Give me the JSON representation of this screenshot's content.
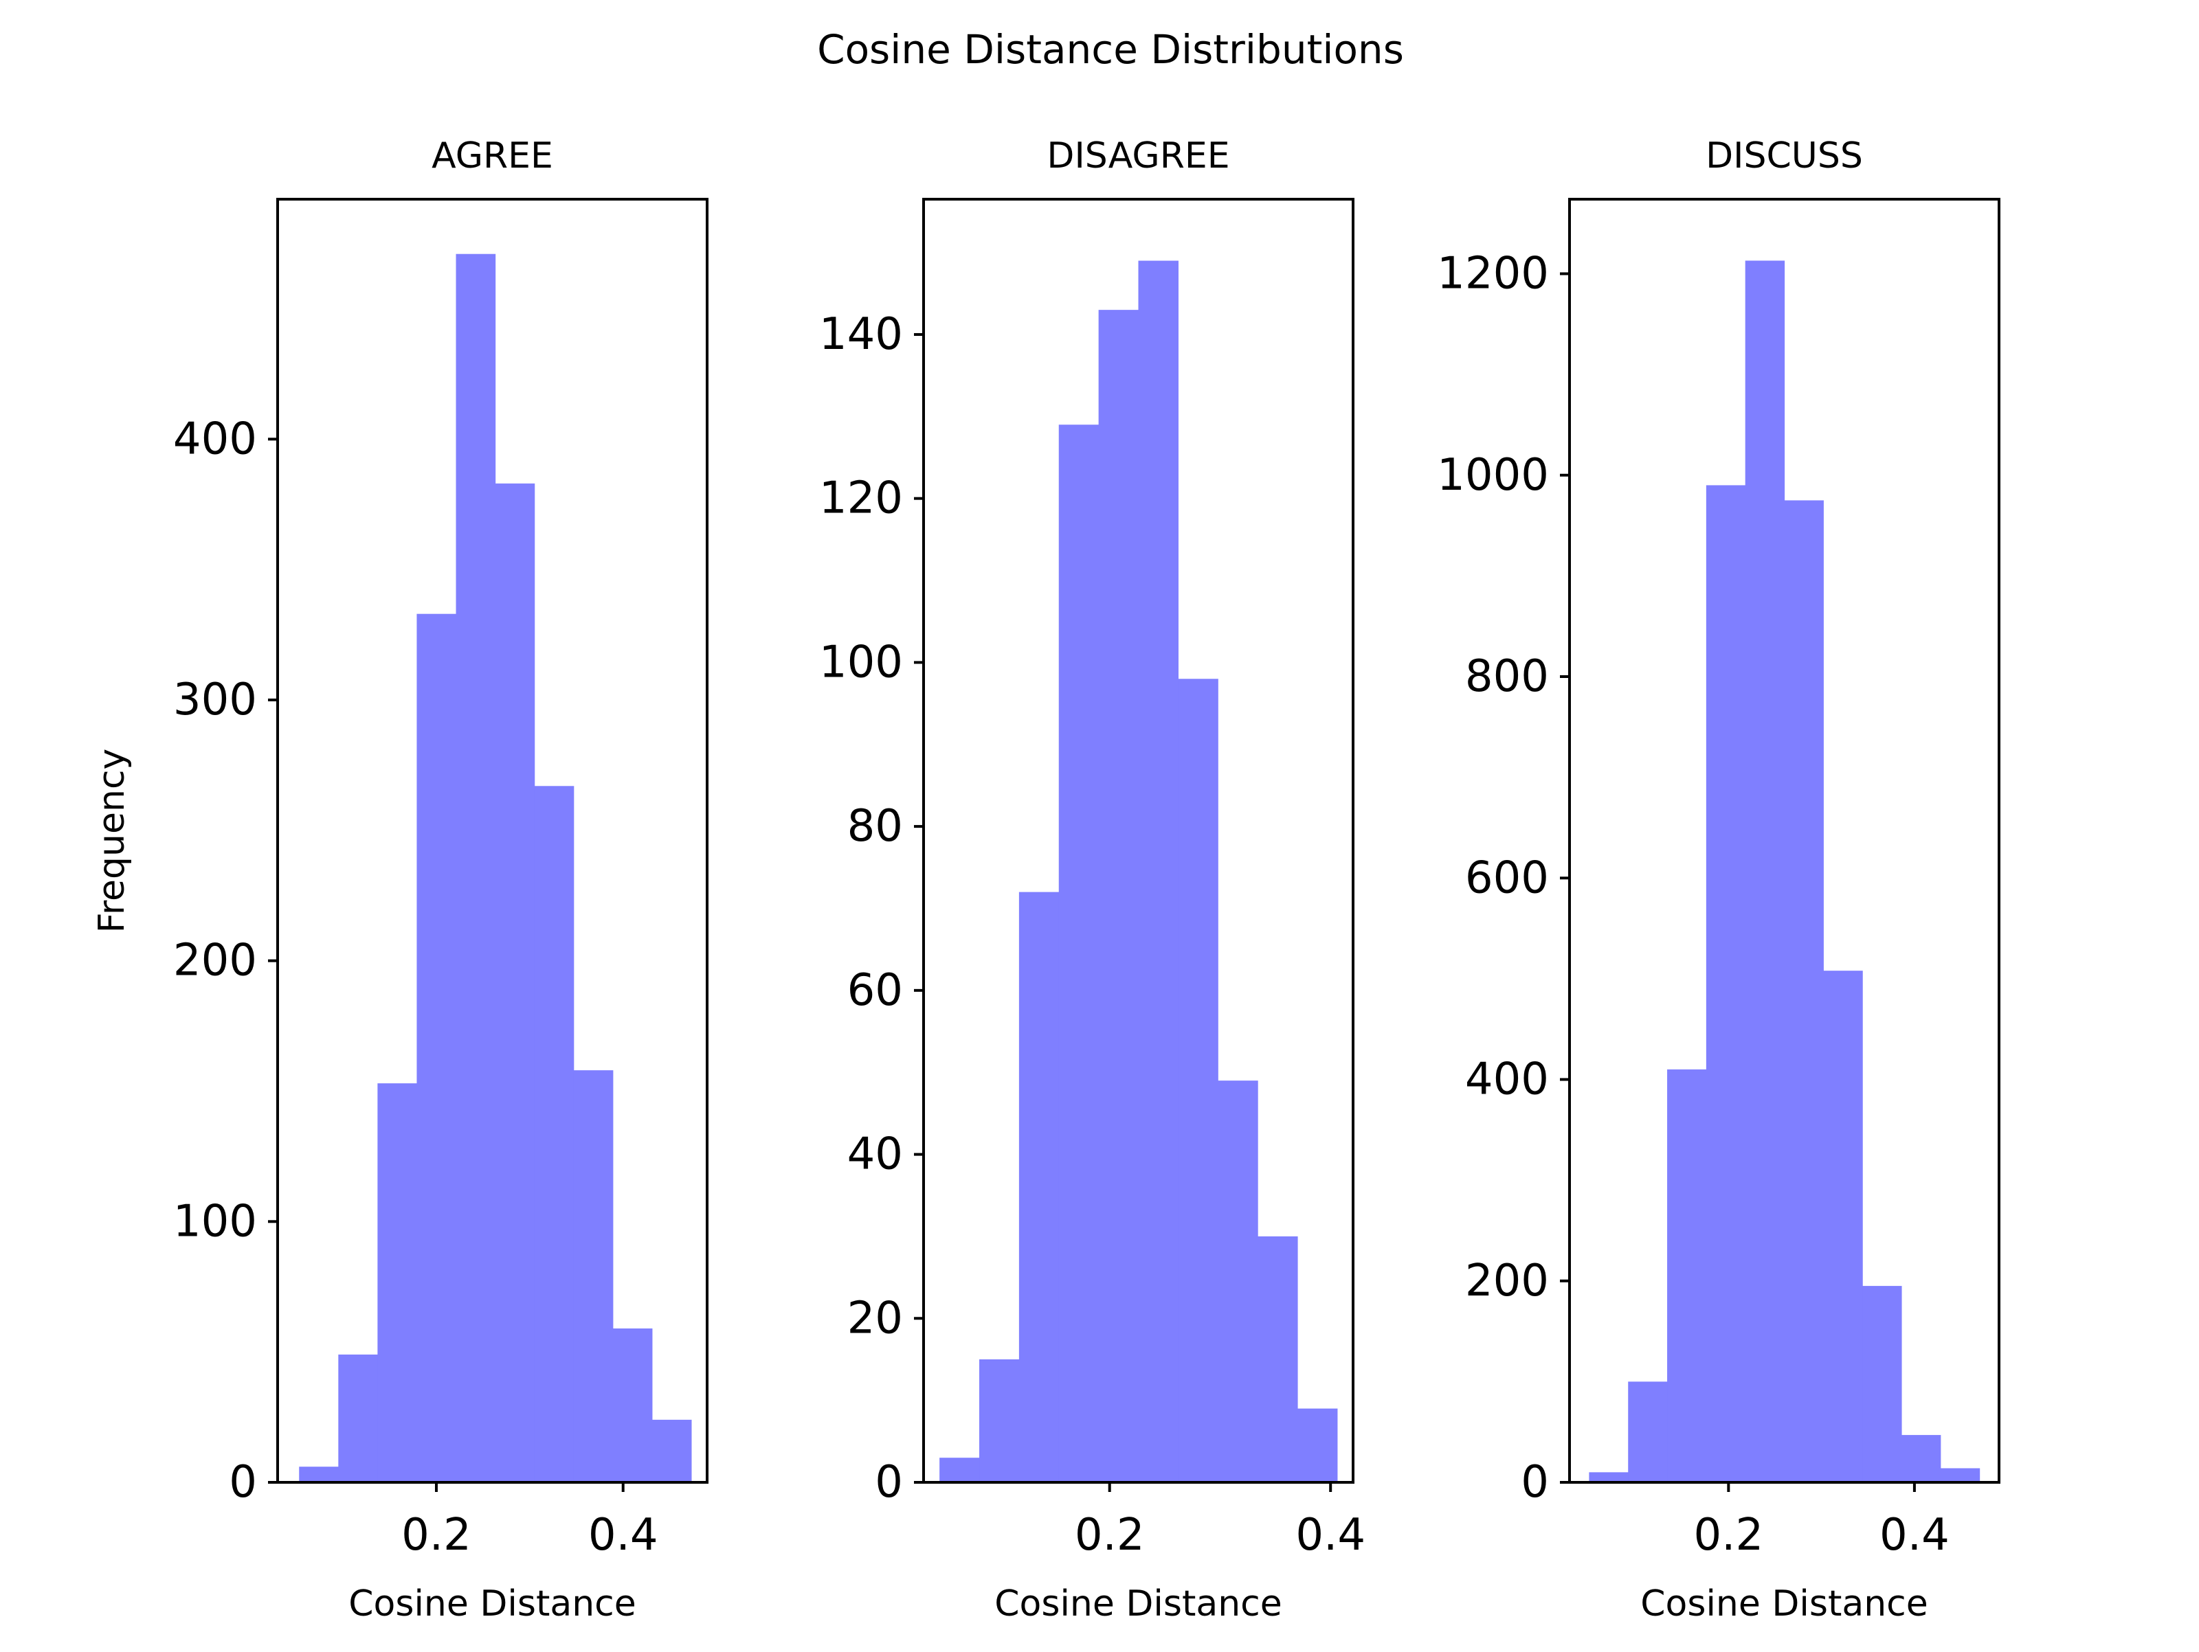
{
  "figure": {
    "title": "Cosine Distance Distributions",
    "bar_color": "#7f7fff",
    "axis_color": "#000000",
    "background": "#ffffff"
  },
  "chart_data": [
    {
      "type": "bar",
      "title": "AGREE",
      "xlabel": "Cosine Distance",
      "ylabel": "Frequency",
      "bin_edges": [
        0.053,
        0.095,
        0.137,
        0.179,
        0.221,
        0.263,
        0.305,
        0.347,
        0.389,
        0.431,
        0.473
      ],
      "values": [
        6,
        49,
        153,
        333,
        471,
        383,
        267,
        158,
        59,
        24
      ],
      "xlim": [
        0.03,
        0.49
      ],
      "ylim": [
        0,
        492
      ],
      "xticks": [
        0.2,
        0.4
      ],
      "xtick_labels": [
        "0.2",
        "0.4"
      ],
      "yticks": [
        0,
        100,
        200,
        300,
        400
      ],
      "ytick_labels": [
        "0",
        "100",
        "200",
        "300",
        "400"
      ],
      "grid": false
    },
    {
      "type": "bar",
      "title": "DISAGREE",
      "xlabel": "Cosine Distance",
      "ylabel": "",
      "bin_edges": [
        0.046,
        0.082,
        0.118,
        0.154,
        0.19,
        0.226,
        0.262,
        0.298,
        0.334,
        0.37,
        0.406
      ],
      "values": [
        3,
        15,
        72,
        129,
        143,
        149,
        98,
        49,
        30,
        9
      ],
      "xlim": [
        0.0316,
        0.4204
      ],
      "ylim": [
        0,
        156.5
      ],
      "xticks": [
        0.2,
        0.4
      ],
      "xtick_labels": [
        "0.2",
        "0.4"
      ],
      "yticks": [
        0,
        20,
        40,
        60,
        80,
        100,
        120,
        140
      ],
      "ytick_labels": [
        "0",
        "20",
        "40",
        "60",
        "80",
        "100",
        "120",
        "140"
      ],
      "grid": false
    },
    {
      "type": "bar",
      "title": "DISCUSS",
      "xlabel": "Cosine Distance",
      "ylabel": "",
      "bin_edges": [
        0.05,
        0.092,
        0.134,
        0.176,
        0.218,
        0.26,
        0.302,
        0.344,
        0.386,
        0.428,
        0.47
      ],
      "values": [
        10,
        100,
        410,
        990,
        1213,
        975,
        508,
        195,
        47,
        14
      ],
      "xlim": [
        0.029,
        0.491
      ],
      "ylim": [
        0,
        1274
      ],
      "xticks": [
        0.2,
        0.4
      ],
      "xtick_labels": [
        "0.2",
        "0.4"
      ],
      "yticks": [
        0,
        200,
        400,
        600,
        800,
        1000,
        1200
      ],
      "ytick_labels": [
        "0",
        "200",
        "400",
        "600",
        "800",
        "1000",
        "1200"
      ],
      "grid": false
    }
  ]
}
